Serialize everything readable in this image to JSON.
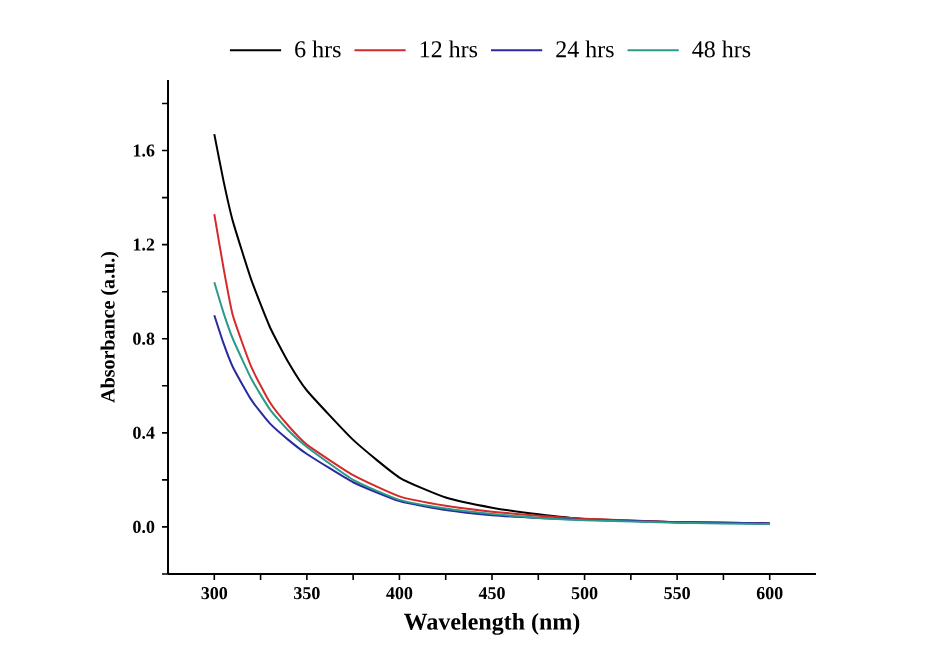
{
  "chart_data": {
    "type": "line",
    "xlabel": "Wavelength (nm)",
    "ylabel": "Absorbance (a.u.)",
    "x": [
      300,
      305,
      310,
      320,
      330,
      340,
      350,
      375,
      400,
      425,
      450,
      475,
      500,
      550,
      600
    ],
    "series": [
      {
        "name": "6 hrs",
        "color": "#000000",
        "values": [
          1.67,
          1.47,
          1.3,
          1.05,
          0.85,
          0.7,
          0.58,
          0.37,
          0.21,
          0.125,
          0.082,
          0.054,
          0.034,
          0.02,
          0.015
        ]
      },
      {
        "name": "12 hrs",
        "color": "#d42a2a",
        "values": [
          1.33,
          1.1,
          0.9,
          0.68,
          0.53,
          0.43,
          0.35,
          0.22,
          0.13,
          0.09,
          0.065,
          0.048,
          0.035,
          0.02,
          0.015
        ]
      },
      {
        "name": "24 hrs",
        "color": "#2a2aa0",
        "values": [
          0.9,
          0.78,
          0.68,
          0.54,
          0.44,
          0.37,
          0.31,
          0.19,
          0.11,
          0.072,
          0.05,
          0.038,
          0.03,
          0.02,
          0.015
        ]
      },
      {
        "name": "48 hrs",
        "color": "#2a9a8a",
        "values": [
          1.04,
          0.91,
          0.8,
          0.63,
          0.5,
          0.41,
          0.34,
          0.2,
          0.115,
          0.078,
          0.055,
          0.038,
          0.028,
          0.018,
          0.012
        ]
      }
    ],
    "xlim": [
      275,
      625
    ],
    "ylim": [
      -0.2,
      1.9
    ],
    "xticks": [
      300,
      {
        "value": 325,
        "label": null
      },
      350,
      {
        "value": 375,
        "label": null
      },
      400,
      {
        "value": 425,
        "label": null
      },
      450,
      {
        "value": 475,
        "label": null
      },
      500,
      {
        "value": 525,
        "label": null
      },
      550,
      {
        "value": 575,
        "label": null
      },
      600
    ],
    "yticks": [
      {
        "value": -0.2,
        "label": null
      },
      {
        "value": 0.0,
        "label": "0.0"
      },
      {
        "value": 0.2,
        "label": null
      },
      {
        "value": 0.4,
        "label": "0.4"
      },
      {
        "value": 0.6,
        "label": null
      },
      {
        "value": 0.8,
        "label": "0.8"
      },
      {
        "value": 1.0,
        "label": null
      },
      {
        "value": 1.2,
        "label": "1.2"
      },
      {
        "value": 1.4,
        "label": null
      },
      {
        "value": 1.6,
        "label": "1.6"
      },
      {
        "value": 1.8,
        "label": null
      }
    ],
    "legend": "top",
    "marker": "none",
    "line_style": "solid",
    "grid": false
  }
}
